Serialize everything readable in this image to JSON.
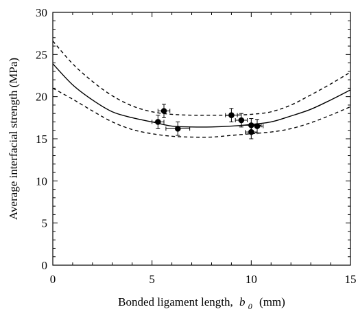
{
  "chart_data": {
    "type": "scatter",
    "xlabel": "Bonded ligament length,",
    "xlabel_symbol": "b",
    "xlabel_subscript": "0",
    "xlabel_unit": "(mm)",
    "ylabel": "Average interfacial strength (MPa)",
    "xlim": [
      0,
      15
    ],
    "ylim": [
      0,
      30
    ],
    "xticks": [
      0,
      5,
      10,
      15
    ],
    "yticks": [
      0,
      5,
      10,
      15,
      20,
      25,
      30
    ],
    "xtick_labels": [
      "0",
      "5",
      "10",
      "15"
    ],
    "ytick_labels": [
      "0",
      "5",
      "10",
      "15",
      "20",
      "25",
      "30"
    ],
    "grid": false,
    "series": [
      {
        "style": "markers-with-error-bars",
        "color": "#000000",
        "points": [
          {
            "x": 5.3,
            "y": 17.0,
            "xerr": 0.3,
            "yerr": 0.8
          },
          {
            "x": 5.6,
            "y": 18.3,
            "xerr": 0.3,
            "yerr": 0.8
          },
          {
            "x": 6.3,
            "y": 16.2,
            "xerr": 0.6,
            "yerr": 0.8
          },
          {
            "x": 9.0,
            "y": 17.8,
            "xerr": 0.3,
            "yerr": 0.8
          },
          {
            "x": 9.5,
            "y": 17.2,
            "xerr": 0.3,
            "yerr": 0.8
          },
          {
            "x": 10.0,
            "y": 16.6,
            "xerr": 0.5,
            "yerr": 0.8
          },
          {
            "x": 10.0,
            "y": 15.8,
            "xerr": 0.3,
            "yerr": 0.8
          },
          {
            "x": 10.3,
            "y": 16.5,
            "xerr": 0.3,
            "yerr": 0.8
          }
        ]
      },
      {
        "style": "solid-line",
        "color": "#000000",
        "x": [
          0,
          1,
          2,
          3,
          4,
          5,
          6,
          7,
          8,
          9,
          10,
          11,
          12,
          13,
          14,
          15
        ],
        "y": [
          23.9,
          21.4,
          19.6,
          18.2,
          17.5,
          17.0,
          16.5,
          16.4,
          16.4,
          16.5,
          16.7,
          17.0,
          17.7,
          18.5,
          19.6,
          20.8
        ]
      },
      {
        "style": "dashed-line",
        "color": "#000000",
        "x": [
          0,
          1,
          2,
          3,
          4,
          5,
          6,
          7,
          8,
          9,
          10,
          11,
          12,
          13,
          14,
          15
        ],
        "y": [
          26.6,
          23.9,
          21.8,
          20.1,
          18.9,
          18.2,
          17.9,
          17.8,
          17.8,
          17.8,
          17.9,
          18.2,
          19.0,
          20.2,
          21.5,
          22.9
        ]
      },
      {
        "style": "dashed-line",
        "color": "#000000",
        "x": [
          0,
          1,
          2,
          3,
          4,
          5,
          6,
          7,
          8,
          9,
          10,
          11,
          12,
          13,
          14,
          15
        ],
        "y": [
          21.0,
          19.7,
          18.3,
          17.0,
          16.1,
          15.6,
          15.3,
          15.2,
          15.2,
          15.4,
          15.6,
          15.8,
          16.2,
          16.9,
          17.8,
          18.8
        ]
      }
    ]
  }
}
